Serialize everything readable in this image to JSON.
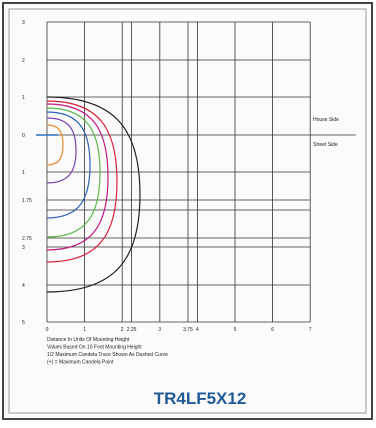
{
  "x_labels": [
    "0",
    "1",
    "2",
    "2.25",
    "3",
    "3.75",
    "4",
    "5",
    "6",
    "7"
  ],
  "y_labels": [
    "3",
    "2",
    "1",
    "0",
    "1",
    "1.75",
    "2.75",
    "3",
    "4",
    "5"
  ],
  "side_labels": {
    "house": "House Side",
    "street": "Street Side"
  },
  "notes": [
    "Distance In Units Of Mounting Height",
    "Values Based On 10 Foot Mounting Height",
    "1/2 Maximum Candela Trace Shown As Dashed Curve",
    "(+) = Maximum Candela Point"
  ],
  "title": "TR4LF5X12"
}
